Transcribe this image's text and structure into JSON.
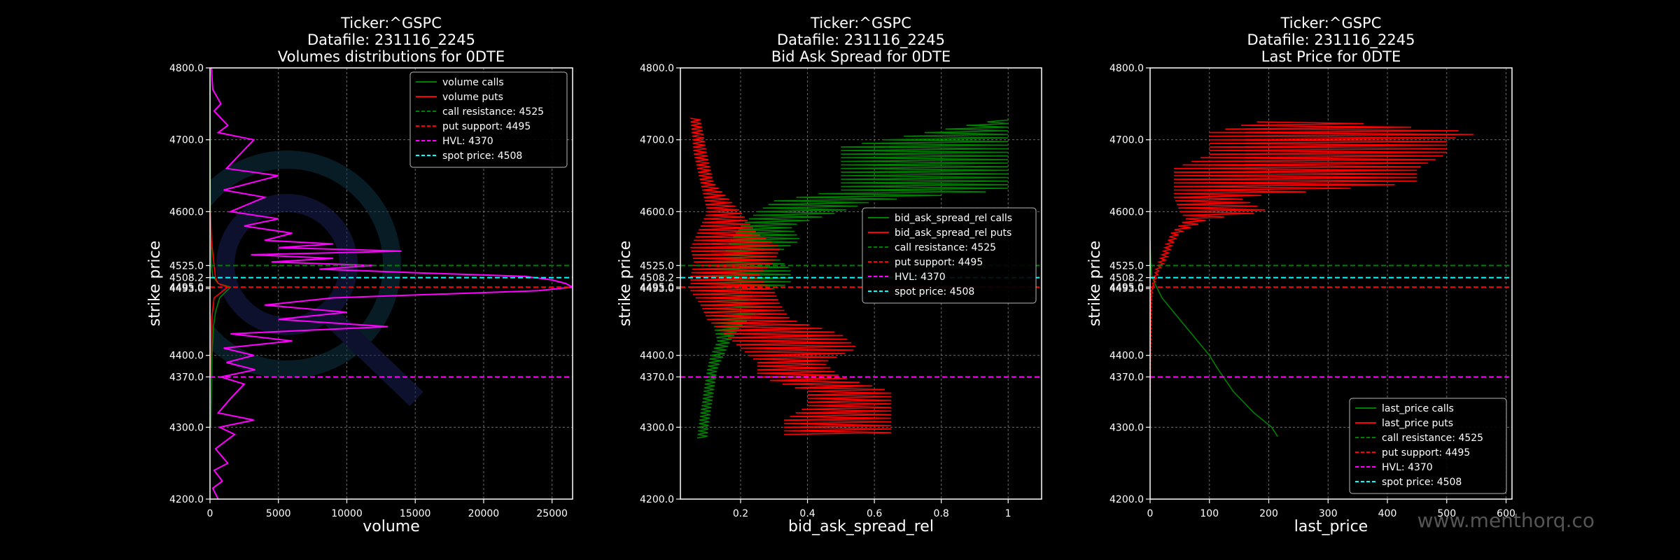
{
  "watermark": "www.menthorq.co",
  "chart_data": [
    {
      "type": "line",
      "title": [
        "Ticker:^GSPC",
        "Datafile: 231116_2245",
        "Volumes distributions for 0DTE"
      ],
      "xlabel": "volume",
      "ylabel": "strike price",
      "xlim": [
        0,
        26500
      ],
      "ylim": [
        4200,
        4800
      ],
      "xticks": [
        0,
        5000,
        10000,
        15000,
        20000,
        25000
      ],
      "yticks": [
        4200.0,
        4300.0,
        4370.0,
        4400.0,
        4493.0,
        4495.0,
        4508.2,
        4525.0,
        4600.0,
        4700.0,
        4800.0
      ],
      "grid": true,
      "legend_position": "top-right",
      "logo_watermark": true,
      "series": [
        {
          "name": "volume calls",
          "color": "#008000",
          "x_at_y": [
            [
              4300,
              60
            ],
            [
              4400,
              150
            ],
            [
              4440,
              250
            ],
            [
              4460,
              400
            ],
            [
              4480,
              700
            ],
            [
              4495,
              1500
            ],
            [
              4500,
              600
            ],
            [
              4510,
              200
            ],
            [
              4525,
              100
            ],
            [
              4560,
              80
            ],
            [
              4600,
              30
            ],
            [
              4700,
              10
            ],
            [
              4795,
              5
            ]
          ]
        },
        {
          "name": "volume puts",
          "color": "#ff0000",
          "x_at_y": [
            [
              4370,
              40
            ],
            [
              4450,
              120
            ],
            [
              4480,
              300
            ],
            [
              4495,
              1300
            ],
            [
              4500,
              600
            ],
            [
              4508,
              400
            ],
            [
              4525,
              300
            ],
            [
              4560,
              100
            ],
            [
              4600,
              30
            ]
          ]
        }
      ],
      "composite_series": {
        "color": "#ff00ff",
        "x_at_y": [
          [
            4200,
            600
          ],
          [
            4215,
            200
          ],
          [
            4225,
            900
          ],
          [
            4240,
            300
          ],
          [
            4250,
            1300
          ],
          [
            4270,
            400
          ],
          [
            4290,
            1800
          ],
          [
            4300,
            700
          ],
          [
            4310,
            3200
          ],
          [
            4320,
            600
          ],
          [
            4340,
            1500
          ],
          [
            4360,
            2500
          ],
          [
            4370,
            800
          ],
          [
            4380,
            3300
          ],
          [
            4390,
            1200
          ],
          [
            4400,
            3200
          ],
          [
            4410,
            1000
          ],
          [
            4420,
            6000
          ],
          [
            4430,
            1500
          ],
          [
            4440,
            13000
          ],
          [
            4450,
            5000
          ],
          [
            4460,
            10000
          ],
          [
            4470,
            4000
          ],
          [
            4480,
            9000
          ],
          [
            4490,
            24000
          ],
          [
            4495,
            26500
          ],
          [
            4500,
            26000
          ],
          [
            4505,
            25000
          ],
          [
            4510,
            23000
          ],
          [
            4515,
            15000
          ],
          [
            4520,
            8000
          ],
          [
            4525,
            12000
          ],
          [
            4530,
            4500
          ],
          [
            4535,
            9000
          ],
          [
            4540,
            3000
          ],
          [
            4545,
            14000
          ],
          [
            4550,
            5000
          ],
          [
            4555,
            9000
          ],
          [
            4560,
            4000
          ],
          [
            4570,
            6000
          ],
          [
            4580,
            2500
          ],
          [
            4590,
            5000
          ],
          [
            4600,
            1500
          ],
          [
            4620,
            4000
          ],
          [
            4630,
            1000
          ],
          [
            4650,
            5000
          ],
          [
            4660,
            1200
          ],
          [
            4680,
            2200
          ],
          [
            4700,
            3200
          ],
          [
            4710,
            600
          ],
          [
            4720,
            1300
          ],
          [
            4740,
            300
          ],
          [
            4750,
            800
          ],
          [
            4770,
            200
          ],
          [
            4800,
            100
          ]
        ]
      },
      "hlines": [
        {
          "label": "call resistance: 4525",
          "y": 4525,
          "color": "#008000"
        },
        {
          "label": "put support: 4495",
          "y": 4495,
          "color": "#ff0000"
        },
        {
          "label": "HVL: 4370",
          "y": 4370,
          "color": "#ff00ff"
        },
        {
          "label": "spot price: 4508",
          "y": 4508.2,
          "color": "#00ffff"
        }
      ]
    },
    {
      "type": "line",
      "title": [
        "Ticker:^GSPC",
        "Datafile: 231116_2245",
        "Bid Ask Spread for 0DTE"
      ],
      "xlabel": "bid_ask_spread_rel",
      "ylabel": "strike price",
      "xlim": [
        0.02,
        1.1
      ],
      "ylim": [
        4200,
        4800
      ],
      "xticks": [
        0.2,
        0.4,
        0.6,
        0.8,
        1.0
      ],
      "yticks": [
        4200.0,
        4300.0,
        4370.0,
        4400.0,
        4493.0,
        4495.0,
        4508.2,
        4525.0,
        4600.0,
        4700.0,
        4800.0
      ],
      "grid": true,
      "legend_position": "center-right",
      "series": [
        {
          "name": "bid_ask_spread_rel calls",
          "color": "#008000",
          "lo_hi_at_y": [
            [
              4285,
              0.07,
              0.1
            ],
            [
              4320,
              0.08,
              0.11
            ],
            [
              4350,
              0.09,
              0.12
            ],
            [
              4380,
              0.1,
              0.13
            ],
            [
              4400,
              0.11,
              0.15
            ],
            [
              4420,
              0.13,
              0.17
            ],
            [
              4440,
              0.12,
              0.2
            ],
            [
              4460,
              0.1,
              0.25
            ],
            [
              4480,
              0.1,
              0.22
            ],
            [
              4500,
              0.1,
              0.35
            ],
            [
              4520,
              0.12,
              0.35
            ],
            [
              4540,
              0.15,
              0.3
            ],
            [
              4560,
              0.17,
              0.38
            ],
            [
              4580,
              0.2,
              0.35
            ],
            [
              4600,
              0.25,
              0.5
            ],
            [
              4615,
              0.3,
              0.6
            ],
            [
              4630,
              0.5,
              1.0
            ],
            [
              4650,
              0.5,
              1.0
            ],
            [
              4670,
              0.5,
              1.0
            ],
            [
              4690,
              0.5,
              1.0
            ],
            [
              4730,
              1.0,
              1.0
            ]
          ]
        },
        {
          "name": "bid_ask_spread_rel puts",
          "color": "#ff0000",
          "lo_hi_at_y": [
            [
              4290,
              0.33,
              0.65
            ],
            [
              4310,
              0.33,
              0.65
            ],
            [
              4330,
              0.4,
              0.65
            ],
            [
              4350,
              0.4,
              0.65
            ],
            [
              4370,
              0.25,
              0.5
            ],
            [
              4390,
              0.25,
              0.45
            ],
            [
              4410,
              0.2,
              0.55
            ],
            [
              4430,
              0.15,
              0.5
            ],
            [
              4450,
              0.1,
              0.35
            ],
            [
              4470,
              0.08,
              0.32
            ],
            [
              4490,
              0.05,
              0.3
            ],
            [
              4510,
              0.05,
              0.25
            ],
            [
              4530,
              0.06,
              0.3
            ],
            [
              4550,
              0.05,
              0.32
            ],
            [
              4570,
              0.07,
              0.25
            ],
            [
              4600,
              0.1,
              0.2
            ],
            [
              4640,
              0.08,
              0.12
            ],
            [
              4680,
              0.06,
              0.1
            ],
            [
              4730,
              0.05,
              0.08
            ]
          ]
        }
      ],
      "hlines": [
        {
          "label": "call resistance: 4525",
          "y": 4525,
          "color": "#008000"
        },
        {
          "label": "put support: 4495",
          "y": 4495,
          "color": "#ff0000"
        },
        {
          "label": "HVL: 4370",
          "y": 4370,
          "color": "#ff00ff"
        },
        {
          "label": "spot price: 4508",
          "y": 4508.2,
          "color": "#00ffff"
        }
      ]
    },
    {
      "type": "line",
      "title": [
        "Ticker:^GSPC",
        "Datafile: 231116_2245",
        "Last Price for 0DTE"
      ],
      "xlabel": "last_price",
      "ylabel": "strike price",
      "xlim": [
        0,
        610
      ],
      "ylim": [
        4200,
        4800
      ],
      "xticks": [
        0,
        100,
        200,
        300,
        400,
        500,
        600
      ],
      "yticks": [
        4200.0,
        4300.0,
        4370.0,
        4400.0,
        4493.0,
        4495.0,
        4508.2,
        4525.0,
        4600.0,
        4700.0,
        4800.0
      ],
      "grid": true,
      "legend_position": "bottom-right",
      "series": [
        {
          "name": "last_price calls",
          "color": "#008000",
          "x_at_y": [
            [
              4287,
              215
            ],
            [
              4300,
              205
            ],
            [
              4320,
              175
            ],
            [
              4350,
              140
            ],
            [
              4380,
              115
            ],
            [
              4400,
              100
            ],
            [
              4430,
              70
            ],
            [
              4460,
              40
            ],
            [
              4480,
              20
            ],
            [
              4500,
              8
            ],
            [
              4510,
              3
            ],
            [
              4530,
              1
            ],
            [
              4560,
              0
            ]
          ]
        },
        {
          "name": "last_price puts",
          "color": "#ff0000",
          "lo_hi_at_y": [
            [
              4300,
              0,
              0
            ],
            [
              4400,
              0,
              1
            ],
            [
              4480,
              0,
              3
            ],
            [
              4495,
              2,
              5
            ],
            [
              4500,
              4,
              8
            ],
            [
              4510,
              7,
              12
            ],
            [
              4520,
              10,
              16
            ],
            [
              4530,
              15,
              25
            ],
            [
              4550,
              25,
              35
            ],
            [
              4570,
              35,
              50
            ],
            [
              4590,
              60,
              100
            ],
            [
              4600,
              50,
              200
            ],
            [
              4620,
              40,
              150
            ],
            [
              4640,
              40,
              450
            ],
            [
              4660,
              40,
              450
            ],
            [
              4680,
              100,
              500
            ],
            [
              4700,
              100,
              500
            ],
            [
              4710,
              100,
              560
            ],
            [
              4725,
              180,
              320
            ]
          ]
        }
      ],
      "hlines": [
        {
          "label": "call resistance: 4525",
          "y": 4525,
          "color": "#008000"
        },
        {
          "label": "put support: 4495",
          "y": 4495,
          "color": "#ff0000"
        },
        {
          "label": "HVL: 4370",
          "y": 4370,
          "color": "#ff00ff"
        },
        {
          "label": "spot price: 4508",
          "y": 4508.2,
          "color": "#00ffff"
        }
      ]
    }
  ]
}
